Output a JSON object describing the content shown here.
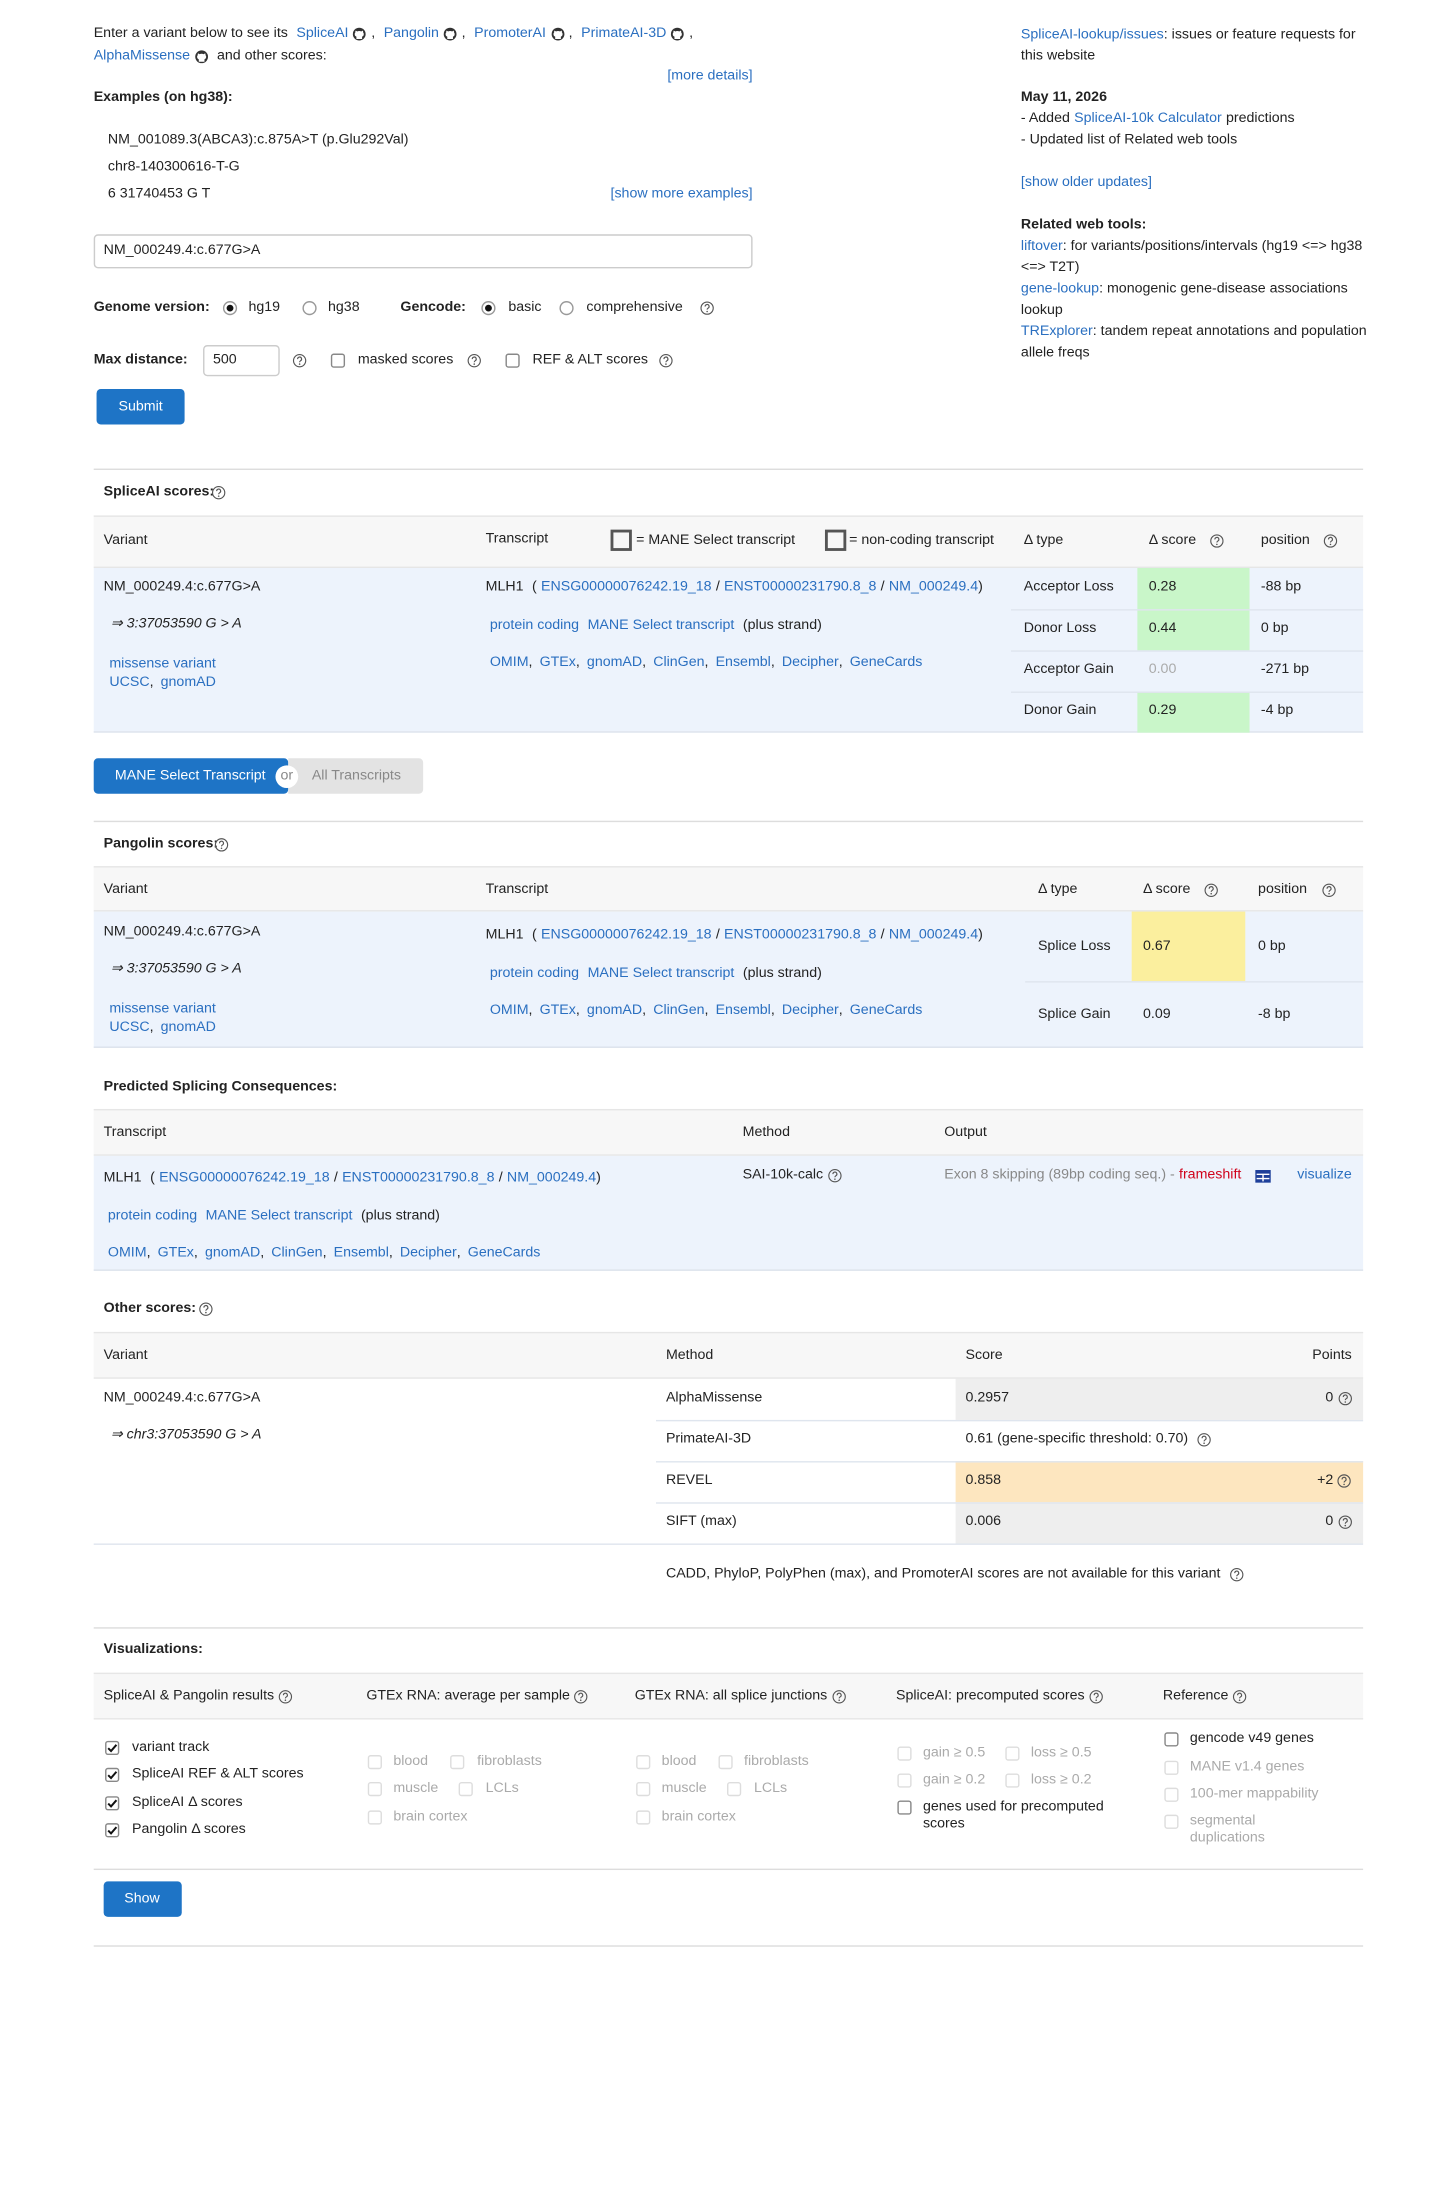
{
  "intro": {
    "lead": "Enter a variant below to see its",
    "tools": [
      "SpliceAI",
      "Pangolin",
      "PromoterAI",
      "PrimateAI-3D",
      "AlphaMissense"
    ],
    "tail": "and other scores:",
    "more_details": "[more details]"
  },
  "punct": {
    "comma": ",",
    "slash": "/",
    "open": "(",
    "close": ")"
  },
  "examples": {
    "title": "Examples  (on hg38):",
    "items": [
      "NM_001089.3(ABCA3):c.875A>T (p.Glu292Val)",
      "chr8-140300616-T-G",
      "6  31740453  G  T"
    ],
    "show_more": "[show more examples]"
  },
  "form": {
    "variant": "NM_000249.4:c.677G>A",
    "genome_label": "Genome version:",
    "genome_options": [
      "hg19",
      "hg38"
    ],
    "gencode_label": "Gencode:",
    "gencode_options": [
      "basic",
      "comprehensive"
    ],
    "max_distance_label": "Max distance:",
    "max_distance": "500",
    "masked": "masked scores",
    "ref_alt": "REF & ALT scores",
    "submit": "Submit"
  },
  "sidebar": {
    "issues_link": "SpliceAI-lookup/issues",
    "issues_text": ": issues or feature requests for this website",
    "update_date": "May 11, 2026",
    "update1": {
      "text": "- Added",
      "link": "SpliceAI-10k Calculator",
      "tail": "predictions"
    },
    "update2": "- Updated list of Related web tools",
    "older": "[show older updates]",
    "related_title": "Related web tools:",
    "related": [
      {
        "name": "liftover",
        "desc": ": for variants/positions/intervals (hg19 <=> hg38 <=> T2T)"
      },
      {
        "name": "gene-lookup",
        "desc": ": monogenic gene-disease associations lookup"
      },
      {
        "name": "TRExplorer",
        "desc": ": tandem repeat annotations and population allele freqs"
      }
    ]
  },
  "variant": {
    "name": "NM_000249.4:c.677G>A",
    "hg19": "⇒ 3:37053590 G > A",
    "consequence": "missense variant",
    "links": [
      "UCSC",
      "gnomAD"
    ]
  },
  "transcript": {
    "gene": "MLH1",
    "ids": [
      "ENSG00000076242.19_18",
      "ENST00000231790.8_8",
      "NM_000249.4"
    ],
    "biotype": "protein coding",
    "tag": "MANE Select transcript",
    "strand": "(plus strand)",
    "links": [
      "OMIM",
      "GTEx",
      "gnomAD",
      "ClinGen",
      "Ensembl",
      "Decipher",
      "GeneCards"
    ]
  },
  "spliceai": {
    "title": "SpliceAI scores:",
    "headers": {
      "variant": "Variant",
      "transcript": "Transcript",
      "mane_legend": "= MANE Select transcript",
      "noncoding_legend": "= non-coding transcript",
      "type": "Δ type",
      "score": "Δ score",
      "position": "position"
    },
    "rows": [
      [
        "Acceptor Loss",
        "0.28",
        "-88 bp"
      ],
      [
        "Donor Loss",
        "0.44",
        "0 bp"
      ],
      [
        "Acceptor Gain",
        "0.00",
        "-271 bp"
      ],
      [
        "Donor Gain",
        "0.29",
        "-4 bp"
      ]
    ]
  },
  "toggle": {
    "mane": "MANE Select Transcript",
    "or": "or",
    "all": "All Transcripts"
  },
  "pangolin": {
    "title": "Pangolin scores:",
    "headers": {
      "variant": "Variant",
      "transcript": "Transcript",
      "type": "Δ type",
      "score": "Δ score",
      "position": "position"
    },
    "rows": [
      [
        "Splice Loss",
        "0.67",
        "0 bp"
      ],
      [
        "Splice Gain",
        "0.09",
        "-8 bp"
      ]
    ]
  },
  "consequences": {
    "title": "Predicted Splicing Consequences:",
    "headers": [
      "Transcript",
      "Method",
      "Output"
    ],
    "method": "SAI-10k-calc",
    "output": "Exon 8 skipping (89bp coding seq.) -",
    "effect": "frameshift",
    "visualize": "visualize"
  },
  "other": {
    "title": "Other scores:",
    "headers": [
      "Variant",
      "Method",
      "Score",
      "Points"
    ],
    "variant": "NM_000249.4:c.677G>A",
    "position": "⇒ chr3:37053590 G > A",
    "rows": [
      [
        "AlphaMissense",
        "0.2957",
        "0"
      ],
      [
        "PrimateAI-3D",
        "0.61  (gene-specific threshold: 0.70)"
      ],
      [
        "REVEL",
        "0.858",
        "+2"
      ],
      [
        "SIFT (max)",
        "0.006",
        "0"
      ]
    ],
    "note": "CADD, PhyloP, PolyPhen (max), and PromoterAI scores are not available for this variant"
  },
  "visualizations": {
    "title": "Visualizations:",
    "columns": [
      {
        "header": "SpliceAI & Pangolin results",
        "options": [
          "variant track",
          "SpliceAI REF & ALT scores",
          "SpliceAI Δ scores",
          "Pangolin Δ scores"
        ]
      },
      {
        "header": "GTEx RNA: average per sample",
        "options": [
          "blood",
          "fibroblasts",
          "muscle",
          "LCLs",
          "brain cortex"
        ]
      },
      {
        "header": "GTEx RNA: all splice junctions",
        "options": [
          "blood",
          "fibroblasts",
          "muscle",
          "LCLs",
          "brain cortex"
        ]
      },
      {
        "header": "SpliceAI: precomputed scores",
        "options": [
          "gain ≥ 0.5",
          "loss ≥ 0.5",
          "gain ≥ 0.2",
          "loss ≥ 0.2",
          "genes used for precomputed scores"
        ]
      },
      {
        "header": "Reference",
        "options": [
          "gencode v49 genes",
          "MANE v1.4 genes",
          "100-mer mappability",
          "segmental duplications"
        ]
      }
    ],
    "show": "Show"
  }
}
